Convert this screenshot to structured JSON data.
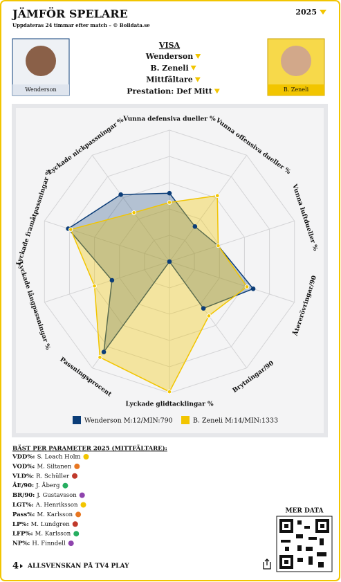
{
  "header": {
    "title": "JÄMFÖR SPELARE",
    "season": "2025",
    "subtitle": "Uppdateras 24 timmar efter match – © Bolldata.se"
  },
  "players": {
    "left": "Wenderson",
    "right": "B. Zeneli"
  },
  "selection": {
    "heading": "VISA",
    "rows": [
      "Wenderson",
      "B. Zeneli",
      "Mittfältare",
      "Prestation: Def Mitt"
    ]
  },
  "chart_data": {
    "type": "radar",
    "axes": [
      "Vunna defensiva dueller %",
      "Vunna offensiva dueller %",
      "Vunna luftdueller %",
      "Återerövringar/90",
      "Brytningar/90",
      "Lyckade glidtacklingar %",
      "Passningsprocent",
      "Lyckade långpassningar %",
      "Lyckade framåtpassningar %",
      "Lyckade nickpassningar %"
    ],
    "rlim": [
      0,
      100
    ],
    "rticks": [
      20,
      40,
      60,
      80,
      100
    ],
    "grid": true,
    "series": [
      {
        "name": "Wenderson M:12/MIN:790",
        "color": "#0b3d78",
        "values": [
          52,
          33,
          39,
          67,
          44,
          0,
          85,
          46,
          81,
          63
        ]
      },
      {
        "name": "B. Zeneli M:14/MIN:1333",
        "color": "#f2c500",
        "values": [
          45,
          62,
          39,
          62,
          51,
          99,
          90,
          60,
          79,
          46
        ]
      }
    ]
  },
  "best": {
    "heading": "BÄST PER PARAMETER 2025 (MITTFÄLTARE):",
    "rows": [
      {
        "param": "VDD%:",
        "player": "S. Leach Holm"
      },
      {
        "param": "VOD%:",
        "player": "M. Siltanen"
      },
      {
        "param": "VLD%:",
        "player": "R. Schüller"
      },
      {
        "param": "ÅE/90:",
        "player": "J. Åberg"
      },
      {
        "param": "BR/90:",
        "player": "J. Gustavsson"
      },
      {
        "param": "LGT%:",
        "player": "A. Henriksson"
      },
      {
        "param": "Pass%:",
        "player": "M. Karlsson"
      },
      {
        "param": "LP%:",
        "player": "M. Lundgren"
      },
      {
        "param": "LFP%:",
        "player": "M. Karlsson"
      },
      {
        "param": "NP%:",
        "player": "H. Finndell"
      }
    ]
  },
  "footer": {
    "more": "MER DATA",
    "logo": "4",
    "play": "ALLSVENSKAN PÅ TV4 PLAY"
  }
}
